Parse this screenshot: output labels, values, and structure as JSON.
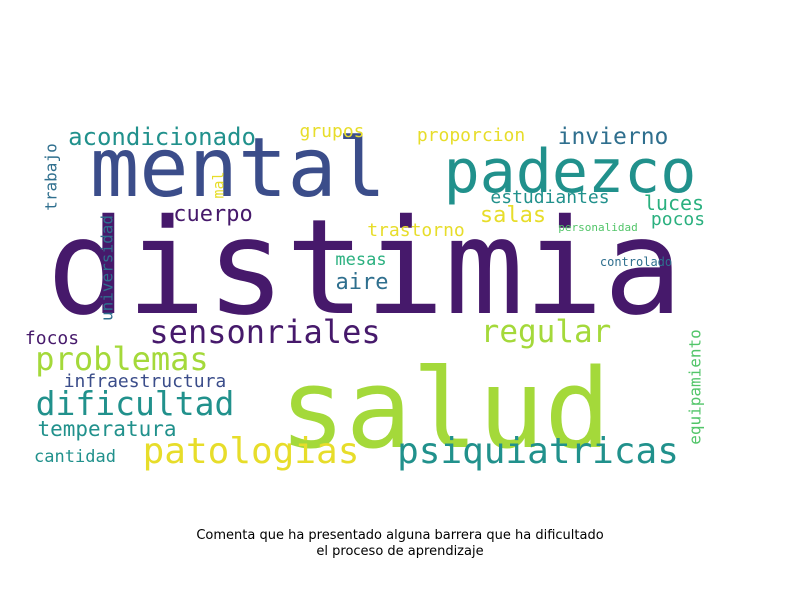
{
  "palette": {
    "dark_purple": "#46196b",
    "indigo": "#3b4d8a",
    "blue": "#2f6f8e",
    "teal": "#21918c",
    "green": "#2ab07f",
    "light_green": "#52c569",
    "lime": "#a4d93a",
    "yellow": "#e7dd2a"
  },
  "words": [
    {
      "text": "distimia",
      "color": "dark_purple"
    },
    {
      "text": "salud",
      "color": "lime"
    },
    {
      "text": "mental",
      "color": "indigo"
    },
    {
      "text": "padezco",
      "color": "teal"
    },
    {
      "text": "problemas",
      "color": "lime"
    },
    {
      "text": "sensonriales",
      "color": "dark_purple"
    },
    {
      "text": "patologias",
      "color": "yellow"
    },
    {
      "text": "psiquiatricas",
      "color": "teal"
    },
    {
      "text": "dificultad",
      "color": "teal"
    },
    {
      "text": "regular",
      "color": "lime"
    },
    {
      "text": "acondicionado",
      "color": "teal"
    },
    {
      "text": "invierno",
      "color": "blue"
    },
    {
      "text": "cuerpo",
      "color": "dark_purple"
    },
    {
      "text": "temperatura",
      "color": "teal"
    },
    {
      "text": "infraestructura",
      "color": "indigo"
    },
    {
      "text": "aire",
      "color": "blue"
    },
    {
      "text": "estudiantes",
      "color": "teal"
    },
    {
      "text": "salas",
      "color": "yellow"
    },
    {
      "text": "luces",
      "color": "green"
    },
    {
      "text": "pocos",
      "color": "green"
    },
    {
      "text": "grupos",
      "color": "yellow"
    },
    {
      "text": "proporcion",
      "color": "yellow"
    },
    {
      "text": "trastorno",
      "color": "yellow"
    },
    {
      "text": "mesas",
      "color": "green"
    },
    {
      "text": "focos",
      "color": "dark_purple"
    },
    {
      "text": "cantidad",
      "color": "teal"
    },
    {
      "text": "trabajo",
      "color": "blue"
    },
    {
      "text": "mal",
      "color": "yellow"
    },
    {
      "text": "universidad",
      "color": "blue"
    },
    {
      "text": "equipamiento",
      "color": "light_green"
    },
    {
      "text": "personalidad",
      "color": "light_green"
    },
    {
      "text": "controlado",
      "color": "blue"
    }
  ],
  "caption": {
    "line1": "Comenta que ha presentado alguna barrera que ha dificultado",
    "line2": "el proceso de aprendizaje"
  }
}
